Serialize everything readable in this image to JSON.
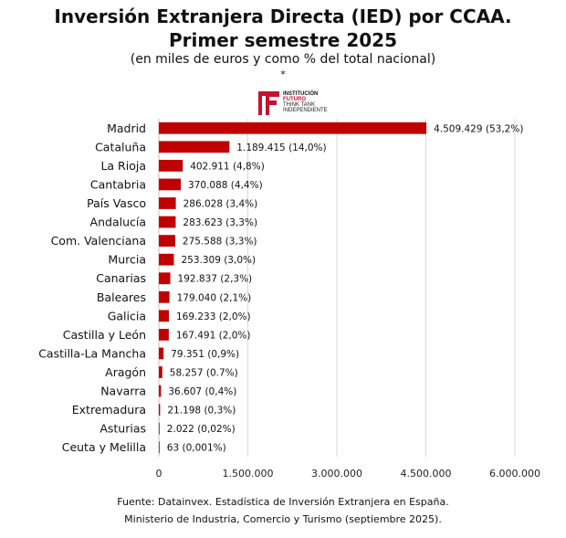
{
  "header": {
    "title_line1": "Inversión Extranjera Directa (IED) por CCAA.",
    "title_line2": "Primer semestre 2025",
    "subtitle": "(en miles de euros y como % del total nacional)",
    "asterisk": "*"
  },
  "logo": {
    "line1": "INSTITUCIÓN",
    "line2": "FUTURO",
    "line3": "THINK TANK",
    "line4": "INDEPENDIENTE",
    "brand_color": "#c8102e"
  },
  "chart_data": {
    "type": "bar",
    "orientation": "horizontal",
    "categories": [
      "Madrid",
      "Cataluña",
      "La Rioja",
      "Cantabria",
      "País Vasco",
      "Andalucía",
      "Com. Valenciana",
      "Murcia",
      "Canarias",
      "Baleares",
      "Galicia",
      "Castilla y León",
      "Castilla-La Mancha",
      "Aragón",
      "Navarra",
      "Extremadura",
      "Asturias",
      "Ceuta y Melilla"
    ],
    "values": [
      4509429,
      1189415,
      402911,
      370088,
      286028,
      283623,
      275588,
      253309,
      192837,
      179040,
      169233,
      167491,
      79351,
      58257,
      36607,
      21198,
      2022,
      63
    ],
    "data_labels": [
      "4.509.429 (53,2%)",
      "1.189.415 (14,0%)",
      "402.911 (4,8%)",
      "370.088 (4,4%)",
      "286.028 (3,4%)",
      "283.623 (3,3%)",
      "275.588 (3,3%)",
      "253.309 (3,0%)",
      "192.837 (2,3%)",
      "179.040 (2,1%)",
      "169.233 (2,0%)",
      "167.491 (2,0%)",
      "79.351  (0,9%)",
      "58.257 (0.7%)",
      "36.607 (0,4%)",
      "21.198 (0,3%)",
      "2.022 (0,02%)",
      "63 (0,001%)"
    ],
    "xlim": [
      0,
      6000000
    ],
    "xticks": [
      0,
      1500000,
      3000000,
      4500000,
      6000000
    ],
    "xtick_labels": [
      "0",
      "1.500.000",
      "3.000.000",
      "4.500.000",
      "6.000.000"
    ],
    "grid": true,
    "bar_color": "#c00000"
  },
  "footer": {
    "source_line1": "Fuente: Datainvex. Estadística de Inversión Extranjera en España.",
    "source_line2": "Ministerio de Industria, Comercio y Turismo (septiembre 2025)."
  }
}
